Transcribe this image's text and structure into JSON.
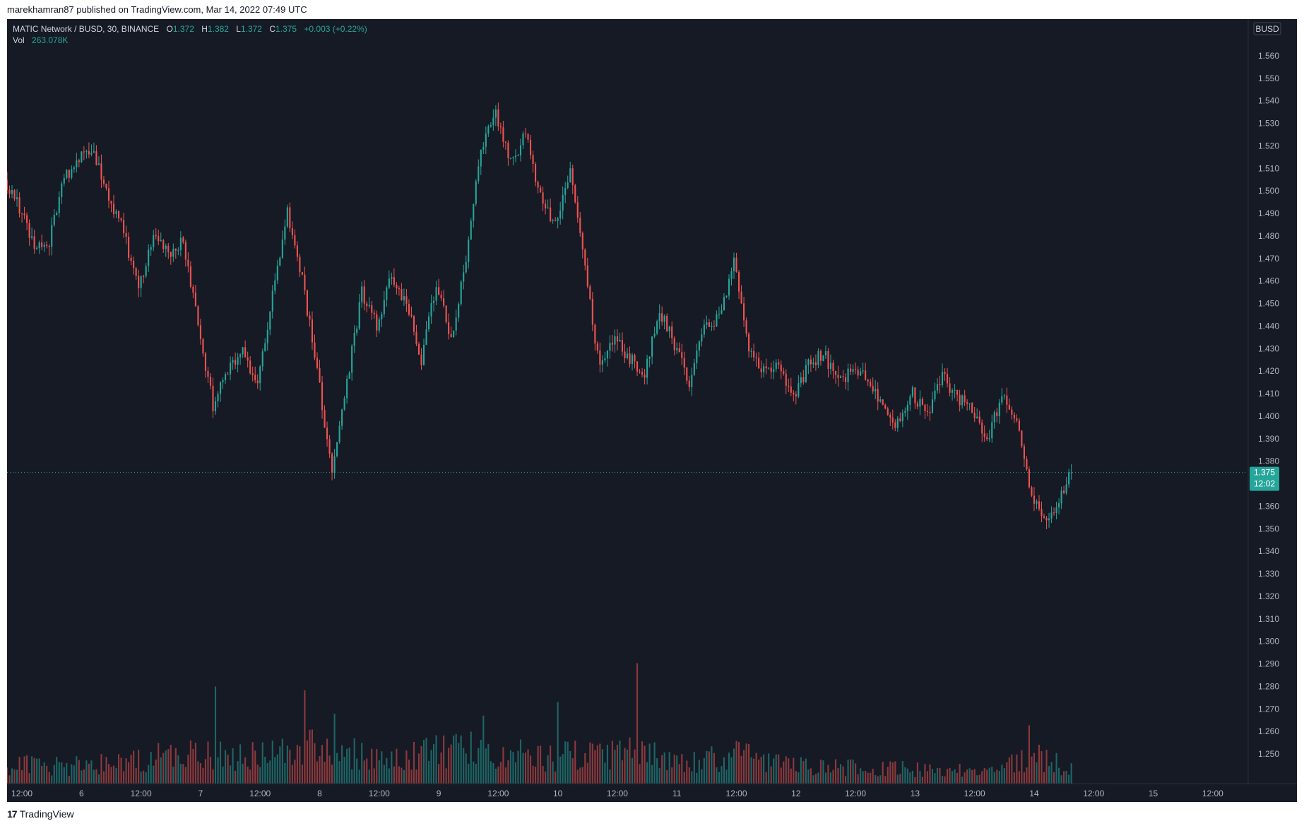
{
  "header": {
    "author": "marekhamran87",
    "caption": "published on TradingView.com, Mar 14, 2022 07:49 UTC"
  },
  "legend": {
    "symbol": "MATIC Network / BUSD, 30, BINANCE",
    "open_label": "O",
    "open": "1.372",
    "high_label": "H",
    "high": "1.382",
    "low_label": "L",
    "low": "1.372",
    "close_label": "C",
    "close": "1.375",
    "change": "+0.003 (+0.22%)",
    "vol_label": "Vol",
    "vol": "263.078K"
  },
  "price_axis": {
    "currency": "BUSD",
    "last_price": "1.375",
    "countdown": "12:02"
  },
  "footer": {
    "mark": "17",
    "brand": "TradingView"
  },
  "colors": {
    "background": "#161a25",
    "up": "#26a69a",
    "down": "#ef5350",
    "axis_text": "#b2b5be",
    "frame": "#ffffff"
  },
  "chart_data": {
    "type": "candlestick",
    "symbol": "MATIC Network / BUSD",
    "interval": "30",
    "exchange": "BINANCE",
    "y_ticks": [
      "1.250",
      "1.260",
      "1.270",
      "1.280",
      "1.290",
      "1.300",
      "1.310",
      "1.320",
      "1.330",
      "1.340",
      "1.350",
      "1.360",
      "1.380",
      "1.390",
      "1.400",
      "1.410",
      "1.420",
      "1.430",
      "1.440",
      "1.450",
      "1.460",
      "1.470",
      "1.480",
      "1.490",
      "1.500",
      "1.510",
      "1.520",
      "1.530",
      "1.540",
      "1.550",
      "1.560"
    ],
    "ylim": [
      1.24,
      1.57
    ],
    "x_ticks": [
      "12:00",
      "6",
      "12:00",
      "7",
      "12:00",
      "8",
      "12:00",
      "9",
      "12:00",
      "10",
      "12:00",
      "11",
      "12:00",
      "12",
      "12:00",
      "13",
      "12:00",
      "14",
      "12:00",
      "15",
      "12:00"
    ],
    "x_range": [
      "2022-03-05T09:00Z",
      "2022-03-15T19:00Z"
    ],
    "last_price": 1.375,
    "path": [
      [
        "2022-03-05T09:00Z",
        1.505
      ],
      [
        "2022-03-05T12:00Z",
        1.492
      ],
      [
        "2022-03-05T15:00Z",
        1.475
      ],
      [
        "2022-03-05T18:00Z",
        1.478
      ],
      [
        "2022-03-05T21:00Z",
        1.505
      ],
      [
        "2022-03-06T00:00Z",
        1.514
      ],
      [
        "2022-03-06T03:00Z",
        1.518
      ],
      [
        "2022-03-06T06:00Z",
        1.495
      ],
      [
        "2022-03-06T09:00Z",
        1.482
      ],
      [
        "2022-03-06T12:00Z",
        1.455
      ],
      [
        "2022-03-06T15:00Z",
        1.48
      ],
      [
        "2022-03-06T18:00Z",
        1.472
      ],
      [
        "2022-03-06T21:00Z",
        1.478
      ],
      [
        "2022-03-07T00:00Z",
        1.44
      ],
      [
        "2022-03-07T03:00Z",
        1.405
      ],
      [
        "2022-03-07T06:00Z",
        1.42
      ],
      [
        "2022-03-07T09:00Z",
        1.43
      ],
      [
        "2022-03-07T12:00Z",
        1.413
      ],
      [
        "2022-03-07T15:00Z",
        1.455
      ],
      [
        "2022-03-07T18:00Z",
        1.49
      ],
      [
        "2022-03-07T21:00Z",
        1.46
      ],
      [
        "2022-03-08T00:00Z",
        1.42
      ],
      [
        "2022-03-08T03:00Z",
        1.375
      ],
      [
        "2022-03-08T06:00Z",
        1.415
      ],
      [
        "2022-03-08T09:00Z",
        1.455
      ],
      [
        "2022-03-08T12:00Z",
        1.44
      ],
      [
        "2022-03-08T15:00Z",
        1.463
      ],
      [
        "2022-03-08T18:00Z",
        1.45
      ],
      [
        "2022-03-08T21:00Z",
        1.425
      ],
      [
        "2022-03-09T00:00Z",
        1.46
      ],
      [
        "2022-03-09T03:00Z",
        1.435
      ],
      [
        "2022-03-09T06:00Z",
        1.47
      ],
      [
        "2022-03-09T09:00Z",
        1.52
      ],
      [
        "2022-03-09T12:00Z",
        1.535
      ],
      [
        "2022-03-09T15:00Z",
        1.512
      ],
      [
        "2022-03-09T18:00Z",
        1.525
      ],
      [
        "2022-03-09T21:00Z",
        1.497
      ],
      [
        "2022-03-10T00:00Z",
        1.485
      ],
      [
        "2022-03-10T03:00Z",
        1.508
      ],
      [
        "2022-03-10T06:00Z",
        1.465
      ],
      [
        "2022-03-10T09:00Z",
        1.42
      ],
      [
        "2022-03-10T12:00Z",
        1.435
      ],
      [
        "2022-03-10T15:00Z",
        1.425
      ],
      [
        "2022-03-10T18:00Z",
        1.42
      ],
      [
        "2022-03-10T21:00Z",
        1.447
      ],
      [
        "2022-03-11T00:00Z",
        1.432
      ],
      [
        "2022-03-11T03:00Z",
        1.415
      ],
      [
        "2022-03-11T06:00Z",
        1.438
      ],
      [
        "2022-03-11T09:00Z",
        1.445
      ],
      [
        "2022-03-11T12:00Z",
        1.468
      ],
      [
        "2022-03-11T15:00Z",
        1.43
      ],
      [
        "2022-03-11T18:00Z",
        1.42
      ],
      [
        "2022-03-11T21:00Z",
        1.425
      ],
      [
        "2022-03-12T00:00Z",
        1.408
      ],
      [
        "2022-03-12T03:00Z",
        1.423
      ],
      [
        "2022-03-12T06:00Z",
        1.428
      ],
      [
        "2022-03-12T09:00Z",
        1.415
      ],
      [
        "2022-03-12T12:00Z",
        1.42
      ],
      [
        "2022-03-12T15:00Z",
        1.417
      ],
      [
        "2022-03-12T18:00Z",
        1.403
      ],
      [
        "2022-03-12T21:00Z",
        1.396
      ],
      [
        "2022-03-13T00:00Z",
        1.41
      ],
      [
        "2022-03-13T03:00Z",
        1.4
      ],
      [
        "2022-03-13T06:00Z",
        1.418
      ],
      [
        "2022-03-13T09:00Z",
        1.408
      ],
      [
        "2022-03-13T12:00Z",
        1.403
      ],
      [
        "2022-03-13T15:00Z",
        1.39
      ],
      [
        "2022-03-13T18:00Z",
        1.408
      ],
      [
        "2022-03-13T21:00Z",
        1.398
      ],
      [
        "2022-03-14T00:00Z",
        1.365
      ],
      [
        "2022-03-14T03:00Z",
        1.352
      ],
      [
        "2022-03-14T06:00Z",
        1.365
      ],
      [
        "2022-03-14T07:30Z",
        1.375
      ]
    ],
    "volume_unit": "K",
    "volume_profile": [
      [
        "2022-03-05T09:00Z",
        60
      ],
      [
        "2022-03-05T21:00Z",
        55
      ],
      [
        "2022-03-06T09:00Z",
        75
      ],
      [
        "2022-03-07T00:00Z",
        95
      ],
      [
        "2022-03-07T09:00Z",
        85
      ],
      [
        "2022-03-07T18:00Z",
        115
      ],
      [
        "2022-03-08T03:00Z",
        110
      ],
      [
        "2022-03-08T12:00Z",
        75
      ],
      [
        "2022-03-08T21:00Z",
        100
      ],
      [
        "2022-03-09T09:00Z",
        110
      ],
      [
        "2022-03-09T21:00Z",
        80
      ],
      [
        "2022-03-10T09:00Z",
        100
      ],
      [
        "2022-03-10T15:00Z",
        110
      ],
      [
        "2022-03-11T03:00Z",
        70
      ],
      [
        "2022-03-11T12:00Z",
        90
      ],
      [
        "2022-03-11T21:00Z",
        60
      ],
      [
        "2022-03-12T12:00Z",
        50
      ],
      [
        "2022-03-13T03:00Z",
        45
      ],
      [
        "2022-03-13T15:00Z",
        45
      ],
      [
        "2022-03-14T00:00Z",
        85
      ],
      [
        "2022-03-14T07:30Z",
        50
      ]
    ],
    "volume_spikes": [
      [
        "2022-03-07T03:00Z",
        250
      ],
      [
        "2022-03-07T21:00Z",
        240
      ],
      [
        "2022-03-10T00:00Z",
        210
      ],
      [
        "2022-03-10T16:00Z",
        310
      ],
      [
        "2022-03-08T03:00Z",
        180
      ],
      [
        "2022-03-09T09:00Z",
        175
      ],
      [
        "2022-03-13T23:00Z",
        150
      ]
    ]
  }
}
